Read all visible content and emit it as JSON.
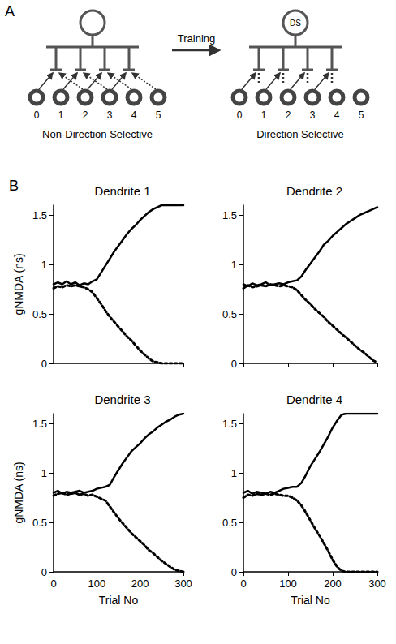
{
  "diagram": {
    "letter": "A",
    "arrow_label": "Training",
    "soma_label": "DS",
    "left_label": "Non-Direction Selective",
    "right_label": "Direction Selective",
    "input_labels": [
      "0",
      "1",
      "2",
      "3",
      "4",
      "5"
    ]
  },
  "charts_letter": "B",
  "chart_data": [
    {
      "type": "line",
      "title": "Dendrite 1",
      "ylabel": "gNMDA (ns)",
      "x": [
        0,
        10,
        20,
        30,
        40,
        50,
        60,
        70,
        80,
        90,
        100,
        110,
        120,
        130,
        140,
        150,
        160,
        170,
        180,
        190,
        200,
        210,
        220,
        230,
        240,
        250,
        260,
        270,
        280,
        290,
        300
      ],
      "series": [
        {
          "color": "#000000",
          "line_style": "solid",
          "values": [
            0.8,
            0.82,
            0.8,
            0.83,
            0.8,
            0.82,
            0.79,
            0.81,
            0.8,
            0.83,
            0.85,
            0.92,
            0.99,
            1.06,
            1.13,
            1.19,
            1.25,
            1.31,
            1.36,
            1.4,
            1.45,
            1.49,
            1.53,
            1.56,
            1.58,
            1.6,
            1.6,
            1.6,
            1.6,
            1.6,
            1.6
          ]
        },
        {
          "color": "#000000",
          "line_style": "dotted",
          "values": [
            0.76,
            0.78,
            0.77,
            0.79,
            0.78,
            0.79,
            0.78,
            0.77,
            0.75,
            0.72,
            0.66,
            0.6,
            0.53,
            0.47,
            0.42,
            0.37,
            0.32,
            0.27,
            0.23,
            0.18,
            0.13,
            0.09,
            0.05,
            0.02,
            0.01,
            0.0,
            0.0,
            0.0,
            0.0,
            0.0,
            0.0
          ]
        }
      ],
      "xlim": [
        0,
        300
      ],
      "xticks": [
        0,
        100,
        200,
        300
      ],
      "ylim": [
        0,
        1.6
      ],
      "yticks": [
        0,
        0.5,
        1,
        1.5
      ],
      "grid": false,
      "tick_labels": "y"
    },
    {
      "type": "line",
      "title": "Dendrite 2",
      "x": [
        0,
        10,
        20,
        30,
        40,
        50,
        60,
        70,
        80,
        90,
        100,
        110,
        120,
        130,
        140,
        150,
        160,
        170,
        180,
        190,
        200,
        210,
        220,
        230,
        240,
        250,
        260,
        270,
        280,
        290,
        300
      ],
      "series": [
        {
          "color": "#000000",
          "line_style": "solid",
          "values": [
            0.8,
            0.78,
            0.81,
            0.79,
            0.8,
            0.82,
            0.79,
            0.8,
            0.81,
            0.8,
            0.82,
            0.83,
            0.84,
            0.88,
            0.95,
            1.01,
            1.07,
            1.13,
            1.2,
            1.24,
            1.29,
            1.33,
            1.37,
            1.41,
            1.44,
            1.47,
            1.5,
            1.52,
            1.54,
            1.56,
            1.58
          ]
        },
        {
          "color": "#000000",
          "line_style": "dotted",
          "values": [
            0.76,
            0.79,
            0.77,
            0.78,
            0.79,
            0.78,
            0.8,
            0.79,
            0.78,
            0.79,
            0.78,
            0.77,
            0.74,
            0.69,
            0.64,
            0.6,
            0.55,
            0.51,
            0.47,
            0.42,
            0.38,
            0.34,
            0.3,
            0.26,
            0.22,
            0.18,
            0.14,
            0.11,
            0.07,
            0.03,
            0.01
          ]
        }
      ],
      "xlim": [
        0,
        300
      ],
      "xticks": [
        0,
        100,
        200,
        300
      ],
      "ylim": [
        0,
        1.6
      ],
      "yticks": [
        0,
        0.5,
        1,
        1.5
      ],
      "grid": false,
      "tick_labels": "y"
    },
    {
      "type": "line",
      "title": "Dendrite 3",
      "ylabel": "gNMDA (ns)",
      "xlabel": "Trial No",
      "x": [
        0,
        10,
        20,
        30,
        40,
        50,
        60,
        70,
        80,
        90,
        100,
        110,
        120,
        130,
        140,
        150,
        160,
        170,
        180,
        190,
        200,
        210,
        220,
        230,
        240,
        250,
        260,
        270,
        280,
        290,
        300
      ],
      "series": [
        {
          "color": "#000000",
          "line_style": "solid",
          "values": [
            0.8,
            0.82,
            0.79,
            0.81,
            0.8,
            0.81,
            0.82,
            0.8,
            0.81,
            0.82,
            0.84,
            0.85,
            0.86,
            0.88,
            0.96,
            1.03,
            1.1,
            1.16,
            1.22,
            1.26,
            1.3,
            1.35,
            1.39,
            1.42,
            1.46,
            1.49,
            1.52,
            1.54,
            1.57,
            1.59,
            1.6
          ]
        },
        {
          "color": "#000000",
          "line_style": "dotted",
          "values": [
            0.77,
            0.79,
            0.8,
            0.78,
            0.79,
            0.8,
            0.78,
            0.79,
            0.77,
            0.78,
            0.76,
            0.74,
            0.72,
            0.66,
            0.6,
            0.54,
            0.49,
            0.44,
            0.39,
            0.35,
            0.31,
            0.27,
            0.22,
            0.19,
            0.15,
            0.11,
            0.08,
            0.05,
            0.02,
            0.01,
            0.0
          ]
        }
      ],
      "xlim": [
        0,
        300
      ],
      "xticks": [
        0,
        100,
        200,
        300
      ],
      "ylim": [
        0,
        1.6
      ],
      "yticks": [
        0,
        0.5,
        1,
        1.5
      ],
      "grid": false
    },
    {
      "type": "line",
      "title": "Dendrite 4",
      "xlabel": "Trial No",
      "x": [
        0,
        10,
        20,
        30,
        40,
        50,
        60,
        70,
        80,
        90,
        100,
        110,
        120,
        130,
        140,
        150,
        160,
        170,
        180,
        190,
        200,
        210,
        220,
        230,
        240,
        250,
        260,
        270,
        280,
        290,
        300
      ],
      "series": [
        {
          "color": "#000000",
          "line_style": "solid",
          "values": [
            0.8,
            0.82,
            0.79,
            0.81,
            0.8,
            0.79,
            0.81,
            0.8,
            0.82,
            0.84,
            0.85,
            0.86,
            0.86,
            0.9,
            0.98,
            1.07,
            1.14,
            1.21,
            1.29,
            1.37,
            1.46,
            1.53,
            1.59,
            1.6,
            1.6,
            1.6,
            1.6,
            1.6,
            1.6,
            1.6,
            1.6
          ]
        },
        {
          "color": "#000000",
          "line_style": "dotted",
          "values": [
            0.75,
            0.78,
            0.77,
            0.79,
            0.78,
            0.79,
            0.78,
            0.79,
            0.78,
            0.77,
            0.77,
            0.75,
            0.72,
            0.67,
            0.6,
            0.52,
            0.44,
            0.37,
            0.29,
            0.21,
            0.12,
            0.05,
            0.01,
            0.0,
            0.0,
            0.0,
            0.0,
            0.0,
            0.0,
            0.0,
            0.0
          ]
        }
      ],
      "xlim": [
        0,
        300
      ],
      "xticks": [
        0,
        100,
        200,
        300
      ],
      "ylim": [
        0,
        1.6
      ],
      "yticks": [
        0,
        0.5,
        1,
        1.5
      ],
      "grid": false
    }
  ]
}
